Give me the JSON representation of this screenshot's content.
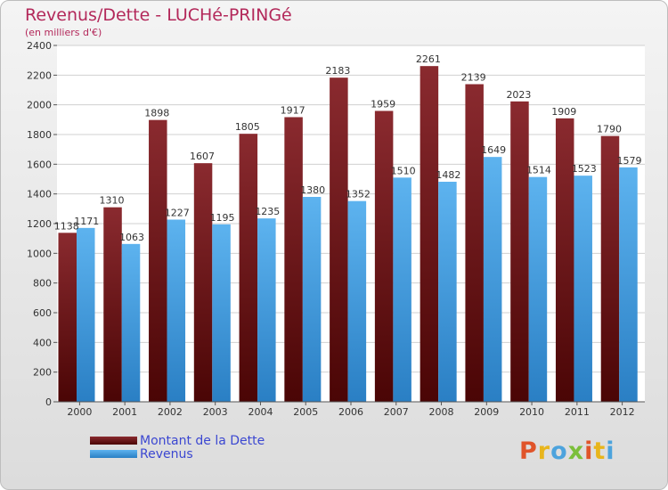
{
  "title": "Revenus/Dette - LUCHé-PRINGé",
  "subtitle": "(en milliers d'€)",
  "logo": "Proxiti",
  "colors": {
    "dette": "#7a1f24",
    "revenus": "#4aa3e6",
    "label_text": "#3b47d1",
    "title_text": "#b3285a"
  },
  "chart_data": {
    "type": "bar",
    "title": "Revenus/Dette - LUCHé-PRINGé",
    "ylabel": "(en milliers d'€)",
    "xlabel": "",
    "categories": [
      "2000",
      "2001",
      "2002",
      "2003",
      "2004",
      "2005",
      "2006",
      "2007",
      "2008",
      "2009",
      "2010",
      "2011",
      "2012"
    ],
    "series": [
      {
        "name": "Montant de la Dette",
        "values": [
          1138,
          1310,
          1898,
          1607,
          1805,
          1917,
          2183,
          1959,
          2261,
          2139,
          2023,
          1909,
          1790
        ]
      },
      {
        "name": "Revenus",
        "values": [
          1171,
          1063,
          1227,
          1195,
          1235,
          1380,
          1352,
          1510,
          1482,
          1649,
          1514,
          1523,
          1579
        ]
      }
    ],
    "ylim": [
      0,
      2400
    ],
    "yticks": [
      0,
      200,
      400,
      600,
      800,
      1000,
      1200,
      1400,
      1600,
      1800,
      2000,
      2200,
      2400
    ],
    "grid": true,
    "legend_position": "bottom-left"
  }
}
